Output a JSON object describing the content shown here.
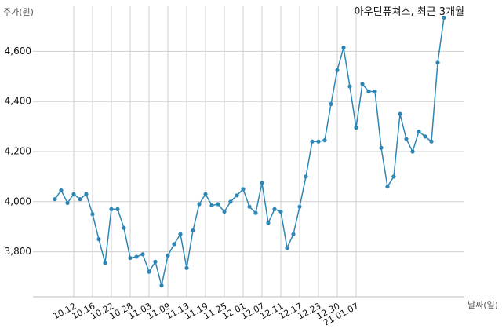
{
  "chart_data": {
    "type": "line",
    "title": "아우딘퓨쳐스, 최근 3개월",
    "ylabel": "주가(원)",
    "xlabel": "날짜(일)",
    "ylim": [
      3620,
      4780
    ],
    "yticks": [
      3800,
      4000,
      4200,
      4400,
      4600
    ],
    "ytick_labels": [
      "3,800",
      "4,000",
      "4,200",
      "4,400",
      "4,600"
    ],
    "xtick_labels": [
      "10.12",
      "10.16",
      "10.22",
      "10.28",
      "11.03",
      "11.09",
      "11.13",
      "11.19",
      "11.25",
      "12.01",
      "12.07",
      "12.11",
      "12.17",
      "12.23",
      "12.30",
      "21.01.07"
    ],
    "xtick_index": [
      3,
      6,
      9,
      12,
      15,
      18,
      21,
      24,
      27,
      30,
      33,
      36,
      39,
      42,
      45,
      48
    ],
    "grid": true,
    "color": "#2e86b5",
    "values": [
      4010,
      4045,
      3995,
      4030,
      4010,
      4030,
      3950,
      3850,
      3755,
      3970,
      3970,
      3895,
      3775,
      3780,
      3790,
      3720,
      3760,
      3665,
      3785,
      3830,
      3870,
      3735,
      3885,
      3990,
      4030,
      3985,
      3990,
      3960,
      4000,
      4025,
      4050,
      3980,
      3955,
      4075,
      3915,
      3970,
      3960,
      3815,
      3870,
      3980,
      4100,
      4240,
      4240,
      4245,
      4390,
      4525,
      4615,
      4460,
      4295,
      4470,
      4440,
      4440,
      4215,
      4060,
      4100,
      4350,
      4250,
      4200,
      4280,
      4260,
      4240,
      4555,
      4735
    ]
  }
}
